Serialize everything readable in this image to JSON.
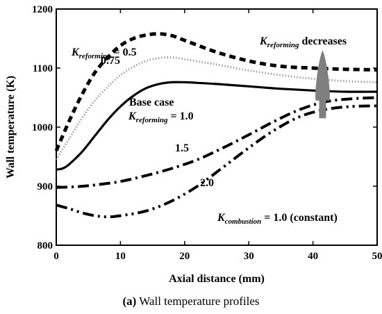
{
  "chart_data": {
    "type": "line",
    "xlabel": "Axial distance (mm)",
    "ylabel": "Wall temperature (K)",
    "xlim": [
      0,
      50
    ],
    "ylim": [
      800,
      1200
    ],
    "xticks": [
      0,
      10,
      20,
      30,
      40,
      50
    ],
    "yticks": [
      800,
      900,
      1000,
      1100,
      1200
    ],
    "grid": false,
    "series": [
      {
        "name": "K_reforming = 0.5",
        "style": "dash-heavy",
        "x": [
          0,
          2,
          4,
          6,
          8,
          10,
          12,
          14,
          16,
          18,
          20,
          25,
          30,
          35,
          40,
          45,
          50
        ],
        "y": [
          960,
          1010,
          1055,
          1092,
          1118,
          1138,
          1150,
          1156,
          1158,
          1155,
          1147,
          1127,
          1112,
          1103,
          1100,
          1098,
          1097
        ]
      },
      {
        "name": "0.75",
        "style": "dotted",
        "x": [
          0,
          2,
          4,
          6,
          8,
          10,
          12,
          14,
          16,
          18,
          20,
          25,
          30,
          35,
          40,
          45,
          50
        ],
        "y": [
          945,
          980,
          1015,
          1045,
          1068,
          1088,
          1102,
          1112,
          1117,
          1118,
          1115,
          1106,
          1096,
          1088,
          1082,
          1078,
          1076
        ]
      },
      {
        "name": "Base case K_reforming = 1.0",
        "style": "solid",
        "x": [
          0,
          1,
          2,
          4,
          6,
          8,
          10,
          12,
          14,
          16,
          18,
          20,
          22,
          25,
          30,
          35,
          40,
          45,
          50
        ],
        "y": [
          928,
          930,
          937,
          958,
          985,
          1012,
          1035,
          1053,
          1066,
          1073,
          1076,
          1076,
          1075,
          1073,
          1069,
          1065,
          1062,
          1060,
          1060
        ]
      },
      {
        "name": "1.5",
        "style": "dash-dot",
        "x": [
          0,
          3,
          6,
          10,
          14,
          18,
          22,
          26,
          30,
          34,
          38,
          42,
          46,
          50
        ],
        "y": [
          898,
          899,
          902,
          908,
          918,
          930,
          945,
          965,
          987,
          1010,
          1030,
          1043,
          1048,
          1050
        ]
      },
      {
        "name": "2.0",
        "style": "dash-dot-dot",
        "x": [
          0,
          2,
          4,
          6,
          8,
          10,
          14,
          18,
          22,
          26,
          30,
          34,
          38,
          42,
          46,
          50
        ],
        "y": [
          868,
          862,
          855,
          850,
          848,
          850,
          858,
          875,
          900,
          932,
          965,
          995,
          1018,
          1030,
          1035,
          1036
        ]
      }
    ],
    "annotations": {
      "k05_main": "K",
      "k05_sub": "reforming",
      "k05_rest": " = 0.5",
      "k075": "0.75",
      "base_line1": "Base case",
      "base_main": "K",
      "base_sub": "reforming",
      "base_rest": " = 1.0",
      "k15": "1.5",
      "k20": "2.0",
      "dec_main": "K",
      "dec_sub": "reforming",
      "dec_rest": " decreases",
      "comb_main": "K",
      "comb_sub": "combustion",
      "comb_rest": " = 1.0 (constant)"
    },
    "arrow_color": "#7f7f7f"
  },
  "caption_label": "(a)",
  "caption_text": " Wall temperature profiles"
}
